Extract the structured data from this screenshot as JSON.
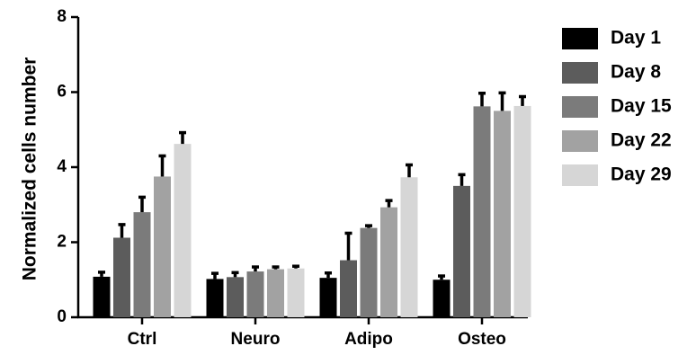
{
  "chart_data": {
    "type": "bar",
    "title": "",
    "xlabel": "",
    "ylabel": "Normalized cells number",
    "ylim": [
      0,
      8
    ],
    "yticks": [
      "0",
      "2",
      "4",
      "6",
      "8"
    ],
    "categories": [
      "Ctrl",
      "Neuro",
      "Adipo",
      "Osteo"
    ],
    "series": [
      {
        "name": "Day 1",
        "color": "#000000",
        "values": [
          1.08,
          1.02,
          1.05,
          1.0
        ],
        "errors": [
          0.12,
          0.15,
          0.13,
          0.1
        ]
      },
      {
        "name": "Day 8",
        "color": "#5c5c5c",
        "values": [
          2.12,
          1.07,
          1.52,
          3.5
        ],
        "errors": [
          0.35,
          0.12,
          0.72,
          0.3
        ]
      },
      {
        "name": "Day 15",
        "color": "#7b7b7b",
        "values": [
          2.8,
          1.22,
          2.38,
          5.62
        ],
        "errors": [
          0.4,
          0.12,
          0.06,
          0.35
        ]
      },
      {
        "name": "Day 22",
        "color": "#a2a2a2",
        "values": [
          3.75,
          1.28,
          2.93,
          5.5
        ],
        "errors": [
          0.55,
          0.06,
          0.18,
          0.48
        ]
      },
      {
        "name": "Day 29",
        "color": "#d6d6d6",
        "values": [
          4.62,
          1.3,
          3.73,
          5.63
        ],
        "errors": [
          0.3,
          0.06,
          0.33,
          0.25
        ]
      }
    ],
    "grid": false,
    "legend_position": "right"
  }
}
